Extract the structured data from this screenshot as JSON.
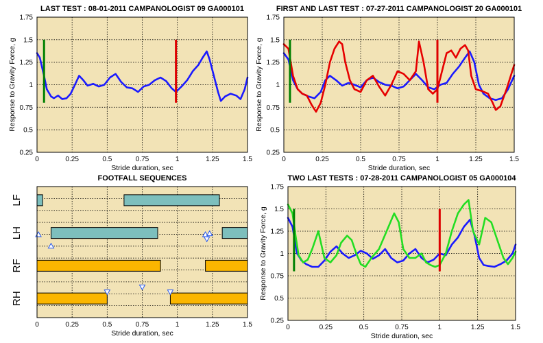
{
  "colors": {
    "plot_bg": "#f2e3b6",
    "grid": "#000000",
    "blue": "#1a1aff",
    "red": "#e60000",
    "green": "#22dd22",
    "marker_green": "#008000",
    "marker_red": "#dd0000",
    "bar_teal": "#7dbfbd",
    "bar_orange": "#fbb600",
    "triangle": "#2255ee"
  },
  "chart_data": [
    {
      "id": "last-test",
      "type": "line",
      "title": "LAST TEST : 08-01-2011 CAMPANOLOGIST 09 GA000101",
      "xlabel": "Stride duration, sec",
      "ylabel": "Response to Gravity Force, g",
      "xlim": [
        0,
        1.5
      ],
      "ylim": [
        0.25,
        1.75
      ],
      "xticks": [
        "0",
        "0.25",
        "0.5",
        "0.75",
        "1",
        "1.25",
        "1.5"
      ],
      "yticks": [
        "0.25",
        "0.5",
        "0.75",
        "1",
        "1.25",
        "1.5",
        "1.75"
      ],
      "grid": true,
      "markers": [
        {
          "x": 0.05,
          "y0": 0.8,
          "y1": 1.5,
          "color": "marker_green"
        },
        {
          "x": 0.99,
          "y0": 0.8,
          "y1": 1.5,
          "color": "marker_red"
        }
      ],
      "series": [
        {
          "color": "blue",
          "x": [
            0,
            0.02,
            0.05,
            0.07,
            0.1,
            0.12,
            0.15,
            0.18,
            0.21,
            0.24,
            0.27,
            0.3,
            0.33,
            0.36,
            0.4,
            0.44,
            0.48,
            0.52,
            0.56,
            0.6,
            0.64,
            0.68,
            0.72,
            0.76,
            0.8,
            0.84,
            0.88,
            0.92,
            0.96,
            0.99,
            1.03,
            1.07,
            1.11,
            1.15,
            1.18,
            1.21,
            1.23,
            1.26,
            1.29,
            1.31,
            1.34,
            1.38,
            1.42,
            1.45,
            1.48,
            1.5
          ],
          "y": [
            1.35,
            1.3,
            1.1,
            0.95,
            0.87,
            0.85,
            0.88,
            0.84,
            0.85,
            0.9,
            1.0,
            1.1,
            1.05,
            0.99,
            1.01,
            0.98,
            1.0,
            1.08,
            1.12,
            1.03,
            0.97,
            0.96,
            0.92,
            0.98,
            1.0,
            1.05,
            1.08,
            1.04,
            0.96,
            0.92,
            0.98,
            1.05,
            1.15,
            1.22,
            1.3,
            1.37,
            1.28,
            1.1,
            0.92,
            0.82,
            0.87,
            0.9,
            0.88,
            0.84,
            0.95,
            1.08
          ]
        }
      ]
    },
    {
      "id": "first-and-last-test",
      "type": "line",
      "title": "FIRST AND LAST TEST : 07-27-2011 CAMPANOLOGIST 20 GA000101",
      "xlabel": "Stride duration, sec",
      "ylabel": "Response to Gravity Force, g",
      "xlim": [
        0,
        1.5
      ],
      "ylim": [
        0.25,
        1.75
      ],
      "xticks": [
        "0",
        "0.25",
        "0.5",
        "0.75",
        "1",
        "1.25",
        "1.5"
      ],
      "yticks": [
        "0.25",
        "0.5",
        "0.75",
        "1",
        "1.25",
        "1.5",
        "1.75"
      ],
      "grid": true,
      "markers": [
        {
          "x": 0.04,
          "y0": 0.8,
          "y1": 1.5,
          "color": "marker_green"
        },
        {
          "x": 1.0,
          "y0": 0.8,
          "y1": 1.5,
          "color": "marker_red"
        }
      ],
      "series": [
        {
          "color": "blue",
          "x": [
            0,
            0.03,
            0.06,
            0.09,
            0.12,
            0.16,
            0.2,
            0.24,
            0.27,
            0.3,
            0.34,
            0.38,
            0.42,
            0.46,
            0.5,
            0.54,
            0.58,
            0.62,
            0.66,
            0.7,
            0.74,
            0.78,
            0.82,
            0.86,
            0.9,
            0.94,
            0.98,
            1.02,
            1.06,
            1.1,
            1.14,
            1.18,
            1.21,
            1.24,
            1.27,
            1.3,
            1.34,
            1.38,
            1.42,
            1.46,
            1.5
          ],
          "y": [
            1.35,
            1.28,
            1.05,
            0.95,
            0.9,
            0.87,
            0.85,
            0.92,
            1.05,
            1.1,
            1.05,
            0.99,
            1.02,
            1.0,
            0.97,
            1.05,
            1.08,
            1.03,
            1.0,
            0.99,
            0.96,
            0.98,
            1.05,
            1.12,
            1.05,
            0.97,
            0.95,
            1.0,
            1.02,
            1.12,
            1.2,
            1.3,
            1.37,
            1.25,
            1.0,
            0.9,
            0.85,
            0.83,
            0.85,
            0.95,
            1.1
          ]
        },
        {
          "color": "red",
          "x": [
            0,
            0.03,
            0.06,
            0.09,
            0.12,
            0.15,
            0.18,
            0.21,
            0.24,
            0.27,
            0.3,
            0.33,
            0.36,
            0.38,
            0.4,
            0.43,
            0.46,
            0.5,
            0.54,
            0.58,
            0.62,
            0.66,
            0.7,
            0.74,
            0.78,
            0.82,
            0.86,
            0.88,
            0.91,
            0.94,
            0.97,
            1.0,
            1.03,
            1.06,
            1.09,
            1.12,
            1.15,
            1.18,
            1.2,
            1.22,
            1.25,
            1.29,
            1.33,
            1.36,
            1.38,
            1.41,
            1.45,
            1.5
          ],
          "y": [
            1.45,
            1.4,
            1.1,
            0.95,
            0.9,
            0.88,
            0.78,
            0.7,
            0.8,
            1.0,
            1.25,
            1.4,
            1.48,
            1.45,
            1.25,
            1.05,
            0.95,
            0.92,
            1.05,
            1.1,
            0.98,
            0.88,
            1.0,
            1.15,
            1.12,
            1.05,
            1.15,
            1.48,
            1.25,
            0.95,
            0.9,
            0.95,
            1.15,
            1.35,
            1.38,
            1.3,
            1.4,
            1.44,
            1.38,
            1.1,
            0.95,
            0.93,
            0.9,
            0.8,
            0.72,
            0.76,
            0.95,
            1.22
          ]
        }
      ]
    },
    {
      "id": "footfall-sequences",
      "type": "gantt",
      "title": "FOOTFALL SEQUENCES",
      "xlabel": "Stride duration, sec",
      "xlim": [
        0,
        1.5
      ],
      "xticks": [
        "0",
        "0.25",
        "0.5",
        "0.75",
        "1",
        "1.25",
        "1.5"
      ],
      "grid": true,
      "legs": [
        "LF",
        "LH",
        "RF",
        "RH"
      ],
      "bars": [
        {
          "leg": "LF",
          "start": 0.0,
          "end": 0.04,
          "color": "bar_teal"
        },
        {
          "leg": "LF",
          "start": 0.62,
          "end": 1.3,
          "color": "bar_teal"
        },
        {
          "leg": "LH",
          "start": 0.1,
          "end": 0.86,
          "color": "bar_teal"
        },
        {
          "leg": "LH",
          "start": 1.32,
          "end": 1.5,
          "color": "bar_teal"
        },
        {
          "leg": "RF",
          "start": 0.0,
          "end": 0.88,
          "color": "bar_orange"
        },
        {
          "leg": "RF",
          "start": 1.2,
          "end": 1.5,
          "color": "bar_orange"
        },
        {
          "leg": "RH",
          "start": 0.0,
          "end": 0.5,
          "color": "bar_orange"
        },
        {
          "leg": "RH",
          "start": 0.95,
          "end": 1.5,
          "color": "bar_orange"
        }
      ],
      "triangles": [
        {
          "x": 0.01,
          "row": 1.55,
          "dir": "up"
        },
        {
          "x": 0.1,
          "row": 1.9,
          "dir": "up"
        },
        {
          "x": 1.2,
          "row": 1.55,
          "dir": "up"
        },
        {
          "x": 1.23,
          "row": 1.52,
          "dir": "up"
        },
        {
          "x": 1.21,
          "row": 1.68,
          "dir": "down"
        },
        {
          "x": 0.5,
          "row": 3.3,
          "dir": "down"
        },
        {
          "x": 0.75,
          "row": 3.15,
          "dir": "down"
        },
        {
          "x": 0.95,
          "row": 3.3,
          "dir": "down"
        }
      ]
    },
    {
      "id": "two-last-tests",
      "type": "line",
      "title": "TWO LAST TESTS : 07-28-2011 CAMPANOLOGIST 05 GA000104",
      "xlabel": "Stride duration, sec",
      "ylabel": "Response to Gravity Force, g",
      "xlim": [
        0,
        1.5
      ],
      "ylim": [
        0.25,
        1.75
      ],
      "xticks": [
        "0",
        "0.25",
        "0.5",
        "0.75",
        "1",
        "1.25",
        "1.5"
      ],
      "yticks": [
        "0.25",
        "0.5",
        "0.75",
        "1",
        "1.25",
        "1.5",
        "1.75"
      ],
      "grid": true,
      "markers": [
        {
          "x": 0.04,
          "y0": 0.8,
          "y1": 1.5,
          "color": "marker_green"
        },
        {
          "x": 1.0,
          "y0": 0.8,
          "y1": 1.5,
          "color": "marker_red"
        }
      ],
      "series": [
        {
          "color": "blue",
          "x": [
            0,
            0.03,
            0.06,
            0.09,
            0.12,
            0.16,
            0.2,
            0.24,
            0.28,
            0.32,
            0.36,
            0.4,
            0.44,
            0.48,
            0.52,
            0.56,
            0.6,
            0.64,
            0.68,
            0.72,
            0.76,
            0.8,
            0.84,
            0.88,
            0.92,
            0.96,
            1.0,
            1.04,
            1.08,
            1.12,
            1.16,
            1.2,
            1.23,
            1.26,
            1.29,
            1.32,
            1.36,
            1.4,
            1.44,
            1.48,
            1.5
          ],
          "y": [
            1.4,
            1.3,
            1.0,
            0.92,
            0.88,
            0.85,
            0.85,
            0.92,
            1.02,
            1.08,
            1.0,
            0.95,
            0.98,
            1.03,
            1.0,
            0.94,
            0.98,
            1.05,
            0.95,
            0.9,
            0.92,
            1.0,
            1.05,
            0.95,
            0.9,
            0.93,
            1.0,
            0.98,
            1.1,
            1.18,
            1.3,
            1.38,
            1.2,
            0.95,
            0.87,
            0.86,
            0.85,
            0.88,
            0.92,
            1.0,
            1.1
          ]
        },
        {
          "color": "green",
          "x": [
            0,
            0.03,
            0.05,
            0.07,
            0.1,
            0.13,
            0.16,
            0.2,
            0.24,
            0.28,
            0.32,
            0.35,
            0.39,
            0.42,
            0.45,
            0.48,
            0.51,
            0.55,
            0.6,
            0.65,
            0.7,
            0.73,
            0.76,
            0.8,
            0.84,
            0.88,
            0.91,
            0.94,
            0.97,
            1.0,
            1.04,
            1.08,
            1.12,
            1.16,
            1.19,
            1.22,
            1.26,
            1.3,
            1.34,
            1.38,
            1.42,
            1.45,
            1.48,
            1.5
          ],
          "y": [
            1.55,
            1.45,
            1.2,
            0.98,
            0.9,
            0.93,
            1.05,
            1.25,
            0.95,
            0.9,
            0.98,
            1.12,
            1.2,
            1.15,
            1.0,
            0.88,
            0.85,
            0.95,
            1.05,
            1.25,
            1.45,
            1.35,
            1.05,
            0.95,
            0.95,
            1.0,
            0.9,
            0.87,
            0.85,
            0.87,
            1.0,
            1.25,
            1.45,
            1.55,
            1.6,
            1.25,
            1.1,
            1.4,
            1.35,
            1.15,
            0.95,
            0.88,
            0.95,
            1.02
          ]
        }
      ]
    }
  ]
}
